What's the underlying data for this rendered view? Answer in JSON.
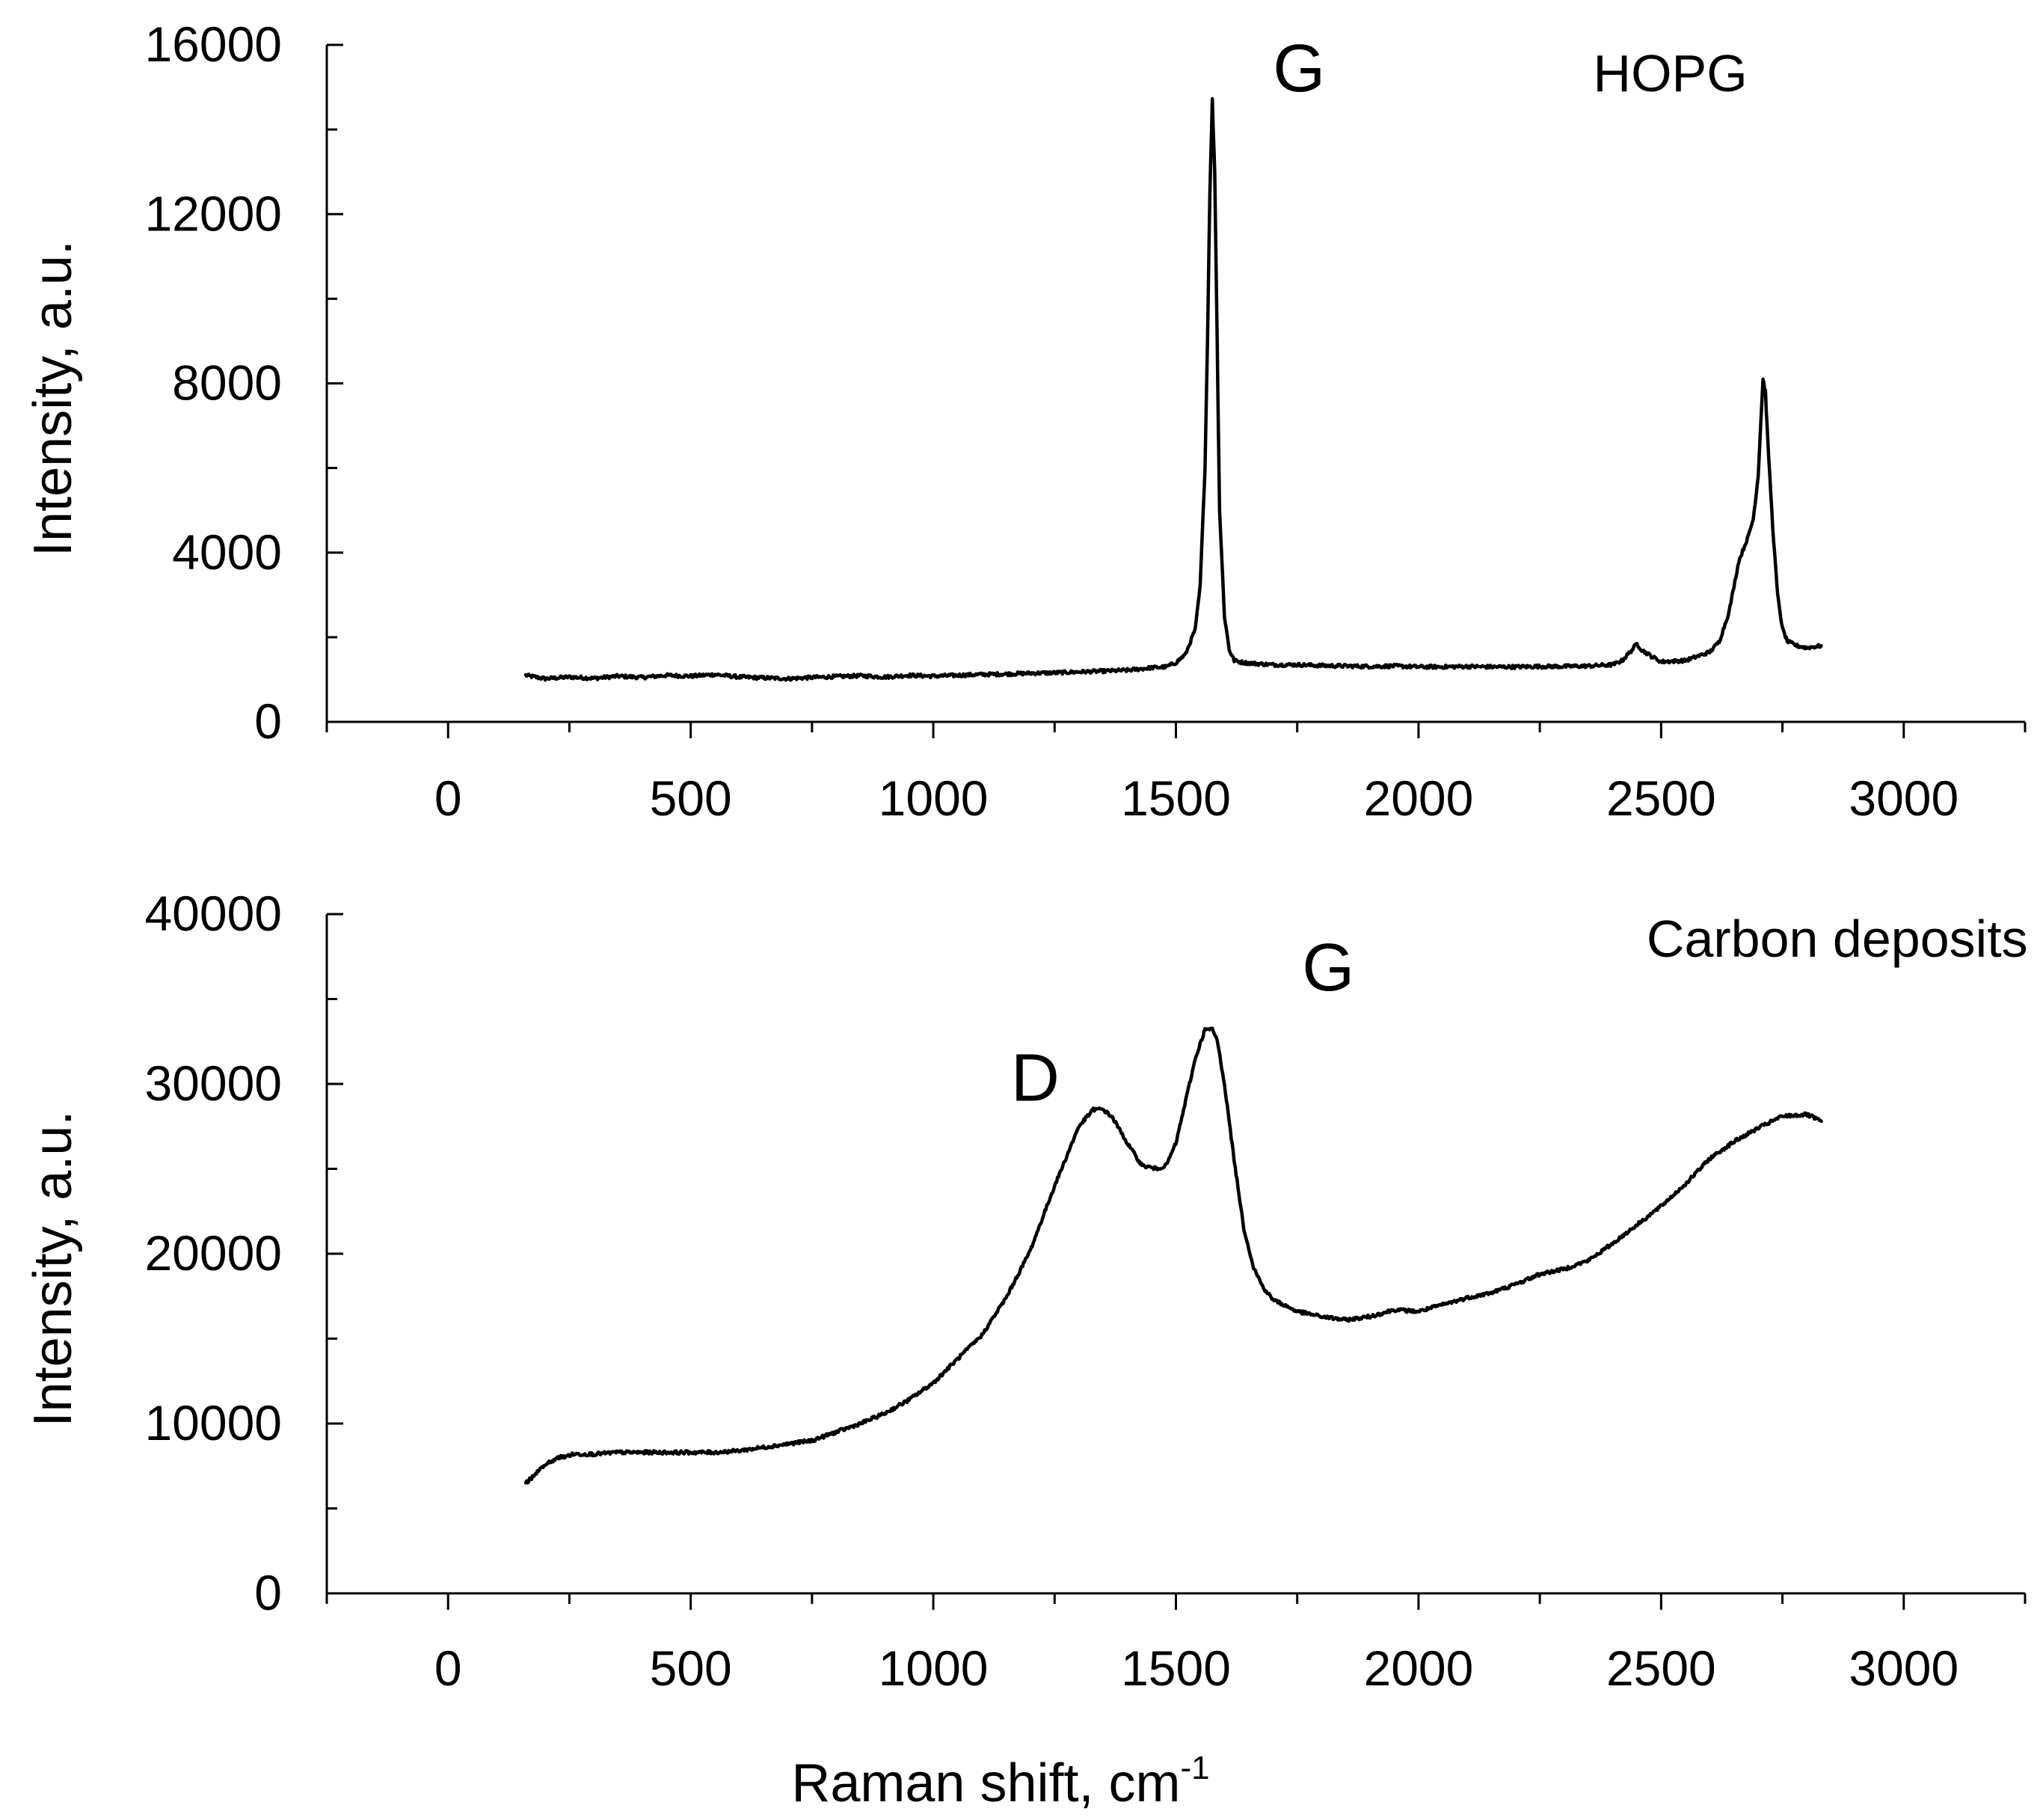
{
  "figure": {
    "xlabel_main": "Raman shift, cm",
    "xlabel_sup": "-1"
  },
  "colors": {
    "line": "#000000",
    "axis": "#000000",
    "background": "#ffffff"
  },
  "chart_data": [
    {
      "type": "line",
      "title": "",
      "panel": "top",
      "xlabel": "",
      "ylabel": "Intensity, a.u.",
      "xlim": [
        -250,
        3250
      ],
      "ylim": [
        0,
        16000
      ],
      "xticks": [
        0,
        500,
        1000,
        1500,
        2000,
        2500,
        3000
      ],
      "xtick_labels": [
        "0",
        "500",
        "1000",
        "1500",
        "2000",
        "2500",
        "3000"
      ],
      "yticks": [
        0,
        4000,
        8000,
        12000,
        16000
      ],
      "ytick_labels": [
        "0",
        "4000",
        "8000",
        "12000",
        "16000"
      ],
      "legend": "none",
      "grid": false,
      "series": [
        {
          "name": "HOPG",
          "x": [
            160,
            200,
            250,
            300,
            350,
            400,
            450,
            500,
            550,
            600,
            650,
            700,
            750,
            800,
            850,
            900,
            950,
            1000,
            1050,
            1100,
            1150,
            1200,
            1250,
            1300,
            1350,
            1400,
            1450,
            1480,
            1500,
            1520,
            1540,
            1550,
            1560,
            1565,
            1570,
            1575,
            1580,
            1585,
            1590,
            1600,
            1610,
            1620,
            1640,
            1660,
            1700,
            1750,
            1800,
            1850,
            1900,
            1950,
            2000,
            2050,
            2100,
            2150,
            2200,
            2250,
            2300,
            2350,
            2400,
            2420,
            2440,
            2450,
            2460,
            2480,
            2500,
            2550,
            2600,
            2620,
            2640,
            2660,
            2680,
            2690,
            2700,
            2705,
            2710,
            2715,
            2720,
            2730,
            2740,
            2750,
            2760,
            2780,
            2800,
            2830
          ],
          "values": [
            1100,
            1020,
            1060,
            1030,
            1080,
            1050,
            1100,
            1080,
            1120,
            1060,
            1040,
            1020,
            1050,
            1070,
            1090,
            1060,
            1100,
            1080,
            1100,
            1120,
            1130,
            1150,
            1160,
            1180,
            1200,
            1220,
            1280,
            1300,
            1400,
            1600,
            2200,
            3200,
            6000,
            9000,
            12500,
            14700,
            13000,
            9000,
            5000,
            2500,
            1700,
            1450,
            1400,
            1380,
            1350,
            1350,
            1330,
            1320,
            1310,
            1320,
            1300,
            1300,
            1310,
            1300,
            1300,
            1310,
            1310,
            1320,
            1350,
            1450,
            1700,
            1850,
            1700,
            1550,
            1420,
            1450,
            1650,
            1900,
            2600,
            3800,
            4400,
            4800,
            5800,
            7000,
            8100,
            7800,
            6600,
            4600,
            3000,
            2200,
            1900,
            1800,
            1750,
            1800
          ]
        }
      ],
      "annotations": [
        {
          "text": "G",
          "x": 1700,
          "y": 14900,
          "size": "large"
        },
        {
          "text": "HOPG",
          "x": 2360,
          "y": 14900,
          "size": "medium"
        }
      ]
    },
    {
      "type": "line",
      "title": "",
      "panel": "bottom",
      "xlabel": "Raman shift, cm-1",
      "ylabel": "Intensity, a.u.",
      "xlim": [
        -250,
        3250
      ],
      "ylim": [
        0,
        40000
      ],
      "xticks": [
        0,
        500,
        1000,
        1500,
        2000,
        2500,
        3000
      ],
      "xtick_labels": [
        "0",
        "500",
        "1000",
        "1500",
        "2000",
        "2500",
        "3000"
      ],
      "yticks": [
        0,
        10000,
        20000,
        30000,
        40000
      ],
      "ytick_labels": [
        "0",
        "10000",
        "20000",
        "30000",
        "40000"
      ],
      "legend": "none",
      "grid": false,
      "series": [
        {
          "name": "Carbon deposits",
          "x": [
            160,
            180,
            200,
            230,
            260,
            300,
            350,
            400,
            450,
            500,
            550,
            600,
            650,
            700,
            750,
            800,
            850,
            900,
            950,
            1000,
            1050,
            1100,
            1150,
            1200,
            1250,
            1300,
            1330,
            1350,
            1370,
            1400,
            1430,
            1460,
            1480,
            1500,
            1520,
            1540,
            1560,
            1575,
            1585,
            1600,
            1620,
            1640,
            1660,
            1680,
            1700,
            1750,
            1800,
            1850,
            1900,
            1950,
            2000,
            2050,
            2100,
            2150,
            2200,
            2250,
            2300,
            2350,
            2400,
            2450,
            2500,
            2550,
            2600,
            2650,
            2700,
            2750,
            2800,
            2830
          ],
          "values": [
            6500,
            7000,
            7600,
            8000,
            8200,
            8200,
            8300,
            8300,
            8300,
            8300,
            8300,
            8400,
            8600,
            8800,
            9000,
            9500,
            10000,
            10600,
            11400,
            12400,
            13800,
            15200,
            17400,
            20200,
            24000,
            27500,
            28500,
            28500,
            28000,
            26500,
            25200,
            25000,
            25200,
            26500,
            29000,
            31500,
            33200,
            33200,
            32600,
            30000,
            25500,
            21500,
            19200,
            18000,
            17300,
            16600,
            16300,
            16100,
            16300,
            16700,
            16600,
            17000,
            17400,
            17700,
            18200,
            18800,
            19100,
            19600,
            20600,
            21700,
            22800,
            24100,
            25600,
            26600,
            27400,
            28100,
            28200,
            27800
          ]
        }
      ],
      "annotations": [
        {
          "text": "D",
          "x": 1160,
          "y": 29000,
          "size": "large"
        },
        {
          "text": "G",
          "x": 1760,
          "y": 35500,
          "size": "large"
        },
        {
          "text": "Carbon deposits",
          "x": 2470,
          "y": 37500,
          "size": "medium"
        }
      ]
    }
  ]
}
